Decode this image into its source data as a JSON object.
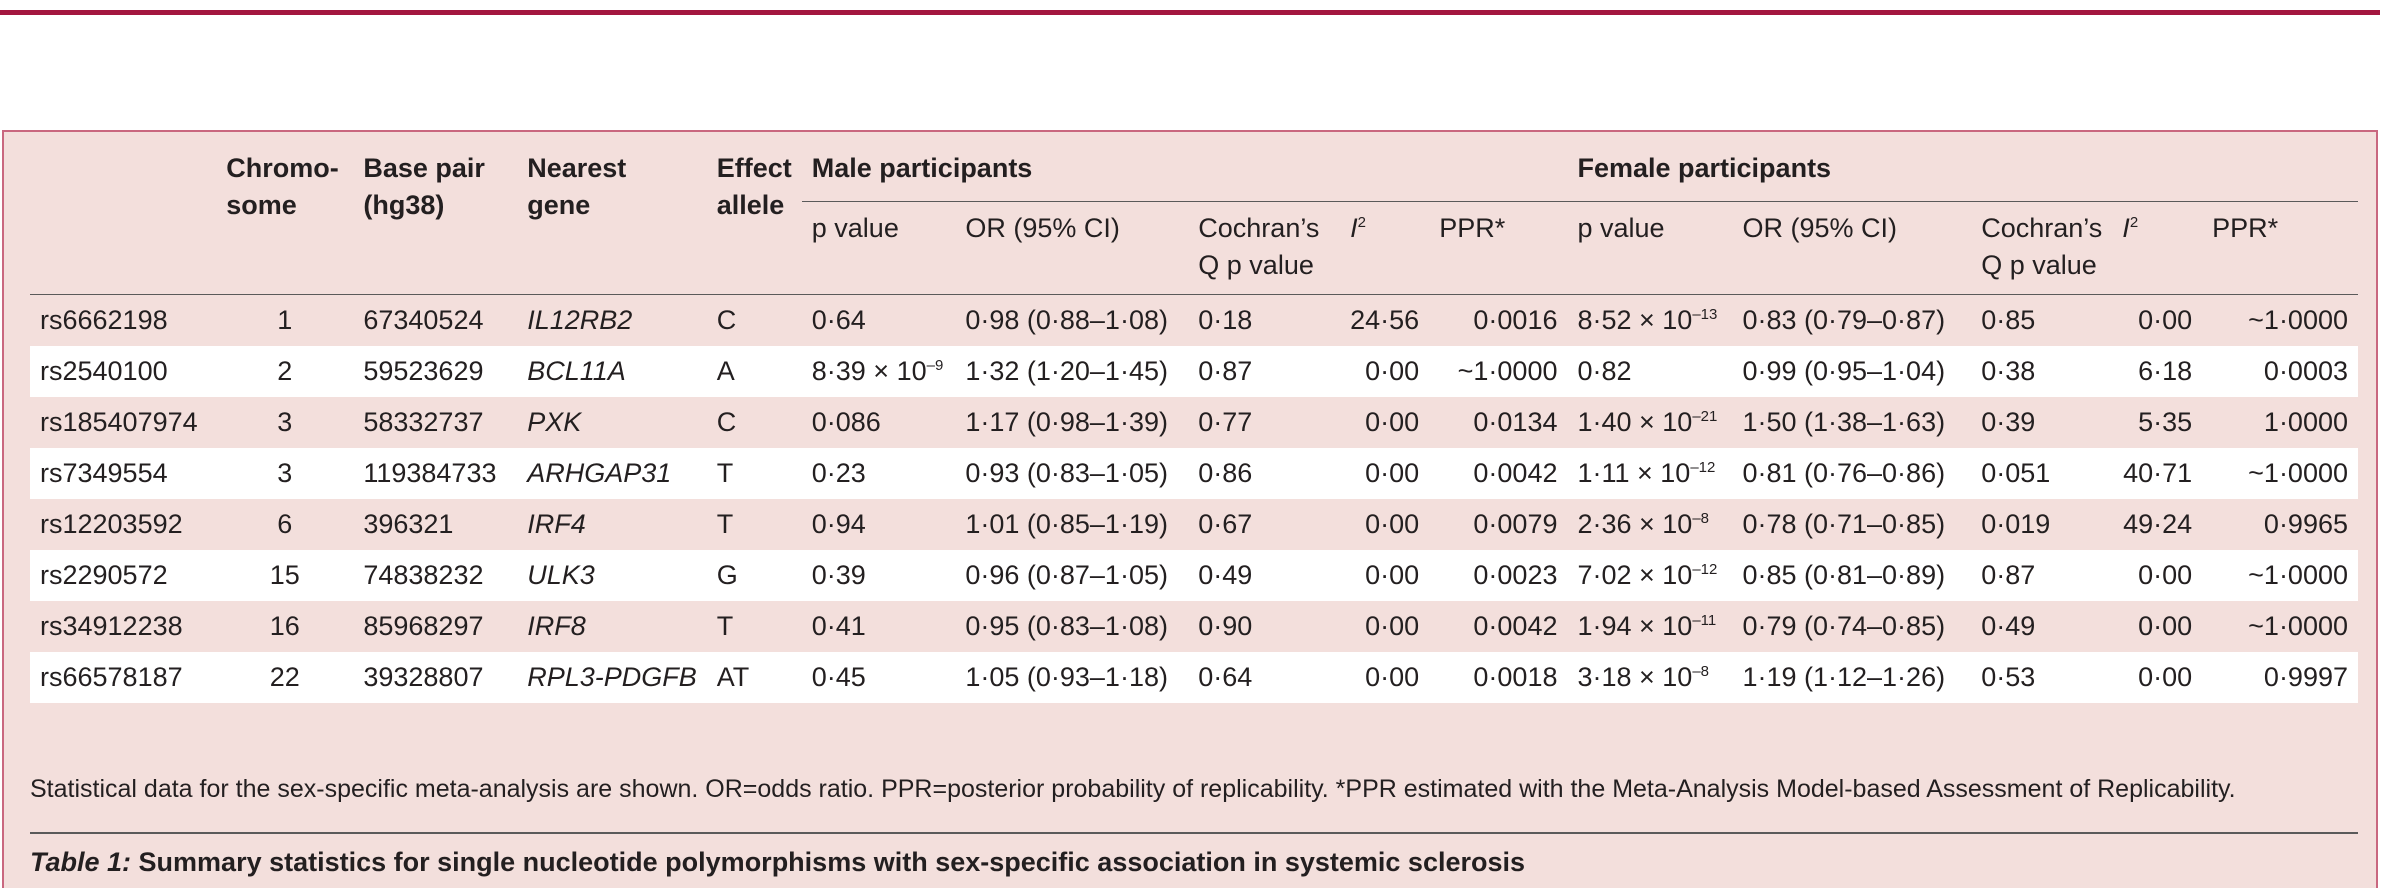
{
  "table": {
    "headers": {
      "snp": "",
      "chromosome": "Chromo-\nsome",
      "base_pair": "Base pair\n(hg38)",
      "nearest_gene": "Nearest\ngene",
      "effect_allele": "Effect\nallele",
      "male_group": "Male participants",
      "female_group": "Female participants",
      "p_value": "p value",
      "or_ci": "OR (95% CI)",
      "cochran": "Cochran’s\nQ p value",
      "i2": "I",
      "i2_sup": "2",
      "ppr": "PPR*"
    },
    "rows": [
      {
        "snp": "rs6662198",
        "chr": "1",
        "bp": "67340524",
        "gene": "IL12RB2",
        "allele": "C",
        "m_p": "0·64",
        "m_p_exp": "",
        "m_or": "0·98 (0·88–1·08)",
        "m_q": "0·18",
        "m_i2": "24·56",
        "m_ppr": "0·0016",
        "f_p": "8·52 × 10",
        "f_p_exp": "–13",
        "f_or": "0·83 (0·79–0·87)",
        "f_q": "0·85",
        "f_i2": "0·00",
        "f_ppr": "~1·0000"
      },
      {
        "snp": "rs2540100",
        "chr": "2",
        "bp": "59523629",
        "gene": "BCL11A",
        "allele": "A",
        "m_p": "8·39 × 10",
        "m_p_exp": "–9",
        "m_or": "1·32 (1·20–1·45)",
        "m_q": "0·87",
        "m_i2": "0·00",
        "m_ppr": "~1·0000",
        "f_p": "0·82",
        "f_p_exp": "",
        "f_or": "0·99 (0·95–1·04)",
        "f_q": "0·38",
        "f_i2": "6·18",
        "f_ppr": "0·0003"
      },
      {
        "snp": "rs185407974",
        "chr": "3",
        "bp": "58332737",
        "gene": "PXK",
        "allele": "C",
        "m_p": "0·086",
        "m_p_exp": "",
        "m_or": "1·17 (0·98–1·39)",
        "m_q": "0·77",
        "m_i2": "0·00",
        "m_ppr": "0·0134",
        "f_p": "1·40 × 10",
        "f_p_exp": "–21",
        "f_or": "1·50 (1·38–1·63)",
        "f_q": "0·39",
        "f_i2": "5·35",
        "f_ppr": "1·0000"
      },
      {
        "snp": "rs7349554",
        "chr": "3",
        "bp": "119384733",
        "gene": "ARHGAP31",
        "allele": "T",
        "m_p": "0·23",
        "m_p_exp": "",
        "m_or": "0·93 (0·83–1·05)",
        "m_q": "0·86",
        "m_i2": "0·00",
        "m_ppr": "0·0042",
        "f_p": "1·11 × 10",
        "f_p_exp": "–12",
        "f_or": "0·81 (0·76–0·86)",
        "f_q": "0·051",
        "f_i2": "40·71",
        "f_ppr": "~1·0000"
      },
      {
        "snp": "rs12203592",
        "chr": "6",
        "bp": "396321",
        "gene": "IRF4",
        "allele": "T",
        "m_p": "0·94",
        "m_p_exp": "",
        "m_or": "1·01 (0·85–1·19)",
        "m_q": "0·67",
        "m_i2": "0·00",
        "m_ppr": "0·0079",
        "f_p": "2·36 × 10",
        "f_p_exp": "–8",
        "f_or": "0·78 (0·71–0·85)",
        "f_q": "0·019",
        "f_i2": "49·24",
        "f_ppr": "0·9965"
      },
      {
        "snp": "rs2290572",
        "chr": "15",
        "bp": "74838232",
        "gene": "ULK3",
        "allele": "G",
        "m_p": "0·39",
        "m_p_exp": "",
        "m_or": "0·96 (0·87–1·05)",
        "m_q": "0·49",
        "m_i2": "0·00",
        "m_ppr": "0·0023",
        "f_p": "7·02 × 10",
        "f_p_exp": "–12",
        "f_or": "0·85 (0·81–0·89)",
        "f_q": "0·87",
        "f_i2": "0·00",
        "f_ppr": "~1·0000"
      },
      {
        "snp": "rs34912238",
        "chr": "16",
        "bp": "85968297",
        "gene": "IRF8",
        "allele": "T",
        "m_p": "0·41",
        "m_p_exp": "",
        "m_or": "0·95 (0·83–1·08)",
        "m_q": "0·90",
        "m_i2": "0·00",
        "m_ppr": "0·0042",
        "f_p": "1·94 × 10",
        "f_p_exp": "–11",
        "f_or": "0·79 (0·74–0·85)",
        "f_q": "0·49",
        "f_i2": "0·00",
        "f_ppr": "~1·0000"
      },
      {
        "snp": "rs66578187",
        "chr": "22",
        "bp": "39328807",
        "gene": "RPL3-PDGFB",
        "allele": "AT",
        "m_p": "0·45",
        "m_p_exp": "",
        "m_or": "1·05 (0·93–1·18)",
        "m_q": "0·64",
        "m_i2": "0·00",
        "m_ppr": "0·0018",
        "f_p": "3·18 × 10",
        "f_p_exp": "–8",
        "f_or": "1·19 (1·12–1·26)",
        "f_q": "0·53",
        "f_i2": "0·00",
        "f_ppr": "0·9997"
      }
    ]
  },
  "footnote": "Statistical data for the sex-specific meta-analysis are shown. OR=odds ratio. PPR=posterior probability of replicability. *PPR estimated with the Meta-Analysis Model-based Assessment of Replicability.",
  "caption": {
    "label": "Table 1:",
    "text": " Summary statistics for single nucleotide polymorphisms with sex-specific association in systemic sclerosis"
  },
  "colors": {
    "accent_rule": "#a3163f",
    "table_background": "#f3dfdc",
    "stripe": "#ffffff"
  }
}
